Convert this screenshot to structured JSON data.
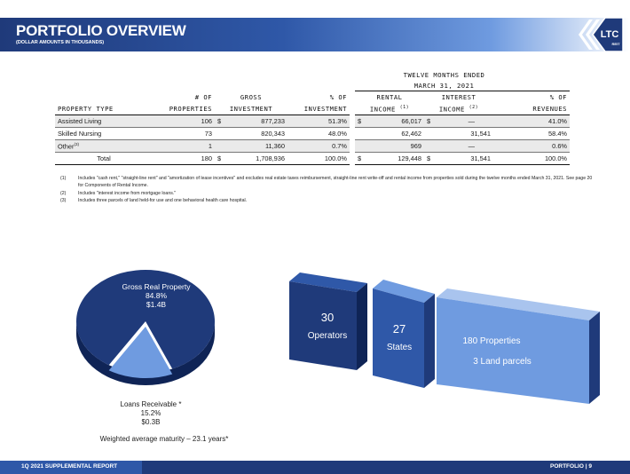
{
  "header": {
    "title": "PORTFOLIO OVERVIEW",
    "subtitle": "(DOLLAR AMOUNTS IN THOUSANDS)",
    "logo_text": "LTC",
    "logo_sub": "REIT"
  },
  "table": {
    "period_line1": "TWELVE MONTHS ENDED",
    "period_line2": "MARCH 31, 2021",
    "headers": {
      "property_type": "PROPERTY TYPE",
      "num_properties_1": "# OF",
      "num_properties_2": "PROPERTIES",
      "gross_investment_1": "GROSS",
      "gross_investment_2": "INVESTMENT",
      "pct_investment_1": "% OF",
      "pct_investment_2": "INVESTMENT",
      "rental_income_1": "RENTAL",
      "rental_income_2": "INCOME",
      "rental_income_sup": "(1)",
      "interest_income_1": "INTEREST",
      "interest_income_2": "INCOME",
      "interest_income_sup": "(2)",
      "pct_revenues_1": "% OF",
      "pct_revenues_2": "REVENUES"
    },
    "rows": [
      {
        "type": "Assisted Living",
        "sup": "",
        "properties": "106",
        "gross_dollar": "$",
        "gross": "877,233",
        "pct_inv": "51.3%",
        "rental_dollar": "$",
        "rental": "66,017",
        "interest_dollar": "$",
        "interest": "—",
        "pct_rev": "41.0%"
      },
      {
        "type": "Skilled Nursing",
        "sup": "",
        "properties": "73",
        "gross_dollar": "",
        "gross": "820,343",
        "pct_inv": "48.0%",
        "rental_dollar": "",
        "rental": "62,462",
        "interest_dollar": "",
        "interest": "31,541",
        "pct_rev": "58.4%"
      },
      {
        "type": "Other",
        "sup": "(3)",
        "properties": "1",
        "gross_dollar": "",
        "gross": "11,360",
        "pct_inv": "0.7%",
        "rental_dollar": "",
        "rental": "969",
        "interest_dollar": "",
        "interest": "—",
        "pct_rev": "0.6%"
      }
    ],
    "total": {
      "type": "Total",
      "properties": "180",
      "gross_dollar": "$",
      "gross": "1,708,936",
      "pct_inv": "100.0%",
      "rental_dollar": "$",
      "rental": "129,448",
      "interest_dollar": "$",
      "interest": "31,541",
      "pct_rev": "100.0%"
    }
  },
  "notes": [
    {
      "num": "(1)",
      "text": "Includes \"cash rent,\" \"straight-line rent\" and \"amortization of lease incentives\" and excludes real estate taxes reimbursement, straight-line rent write-off and rental income from properties sold during the twelve months ended March 31, 2021. See page 20 for Components of Rental Income."
    },
    {
      "num": "(2)",
      "text": "Includes \"interest income from mortgage loans.\""
    },
    {
      "num": "(3)",
      "text": "Includes three parcels of land held-for use and one behavioral health care hospital."
    }
  ],
  "pie": {
    "gross_label": "Gross Real Property",
    "gross_pct": "84.8%",
    "gross_value": "$1.4B",
    "gross_fraction": 0.848,
    "loans_label": "Loans Receivable",
    "loans_star": "*",
    "loans_pct": "15.2%",
    "loans_value": "$0.3B",
    "loans_fraction": 0.152,
    "maturity_note": "Weighted average maturity – 23.1 years*",
    "colors": {
      "dark": "#1f3a7a",
      "side": "#0f2456",
      "light": "#6f9be0"
    }
  },
  "bars": [
    {
      "number": "30",
      "label": "Operators",
      "color": "#1f3a7a"
    },
    {
      "number": "27",
      "label": "States",
      "color": "#2f58a8"
    },
    {
      "line1": "180 Properties",
      "line2": "3 Land parcels",
      "color": "#6f9be0"
    }
  ],
  "footer": {
    "left": "1Q 2021 SUPPLEMENTAL REPORT",
    "right": "PORTFOLIO   |   9"
  }
}
